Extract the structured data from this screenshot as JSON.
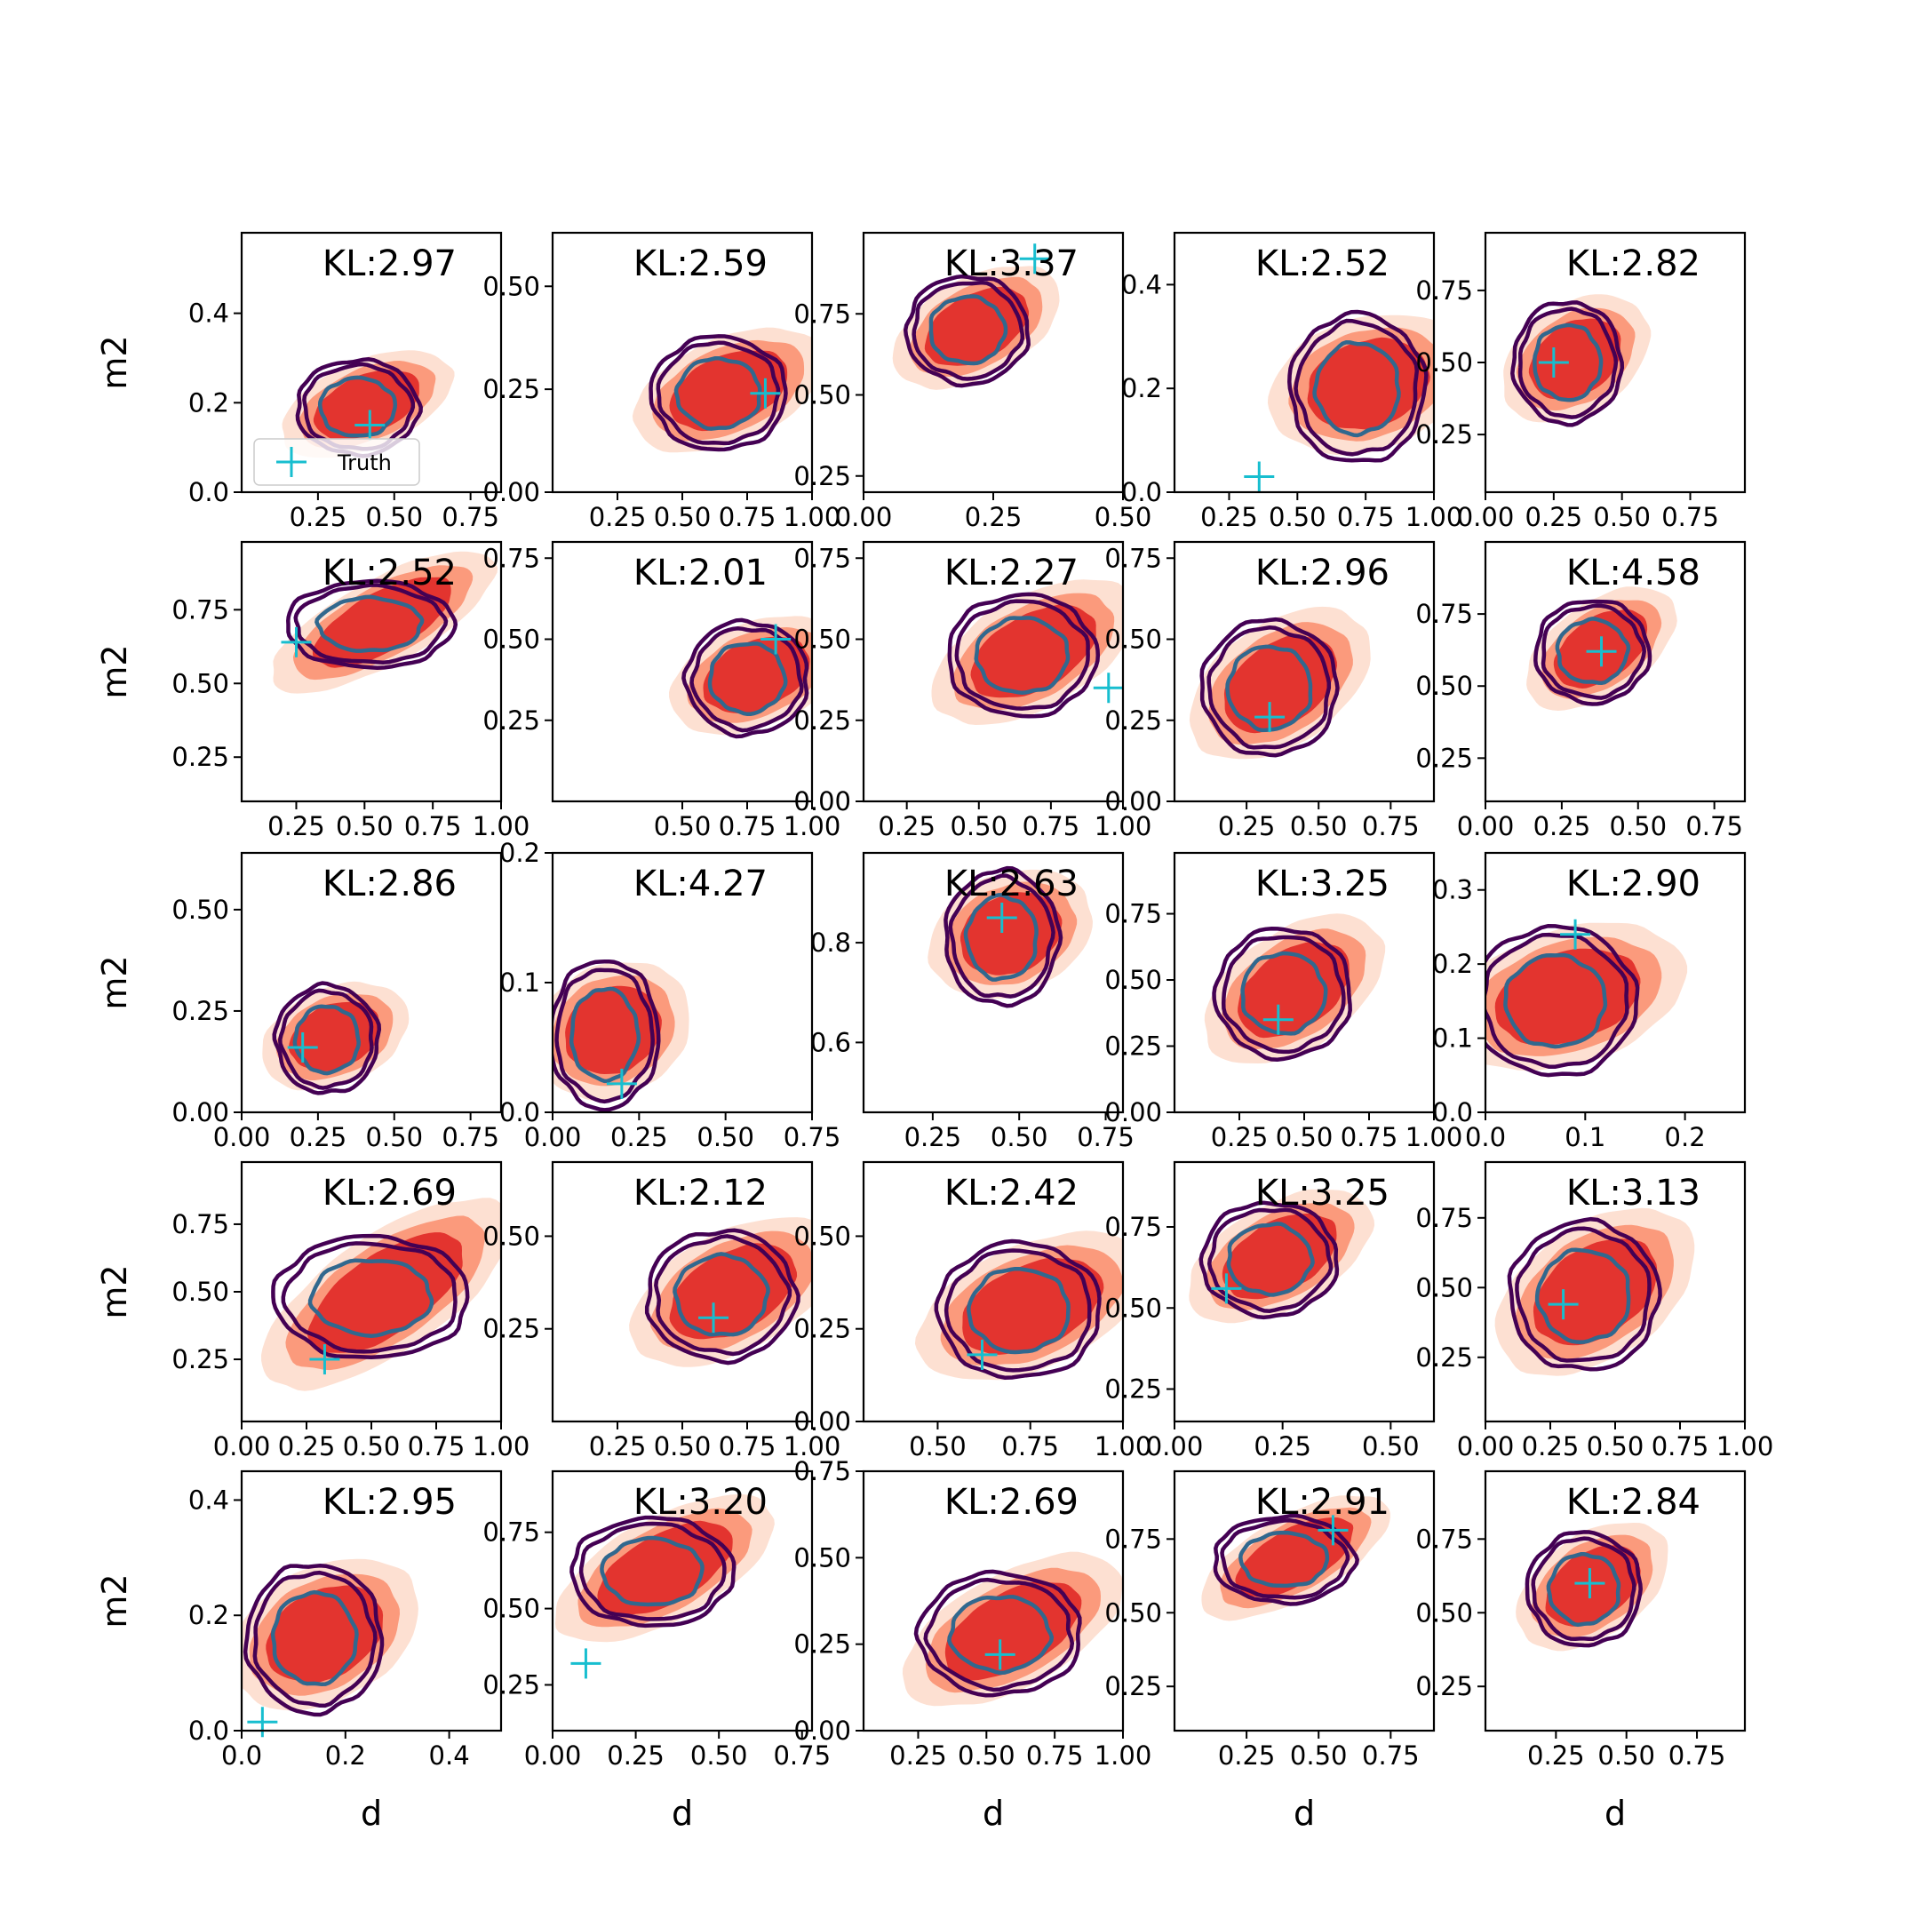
{
  "chart_data": {
    "type": "contour-grid",
    "rows": 5,
    "cols": 5,
    "xlabel": "d",
    "ylabel": "m2",
    "legend": {
      "label": "Truth",
      "location": "lower-left of first panel",
      "marker": "+"
    },
    "colors": {
      "truth": "#17becf",
      "outer_contour": "#440154",
      "inner_contour": "#31688e",
      "fill_light": "#fde0d2",
      "fill_mid": "#fb9a7c",
      "fill_dark": "#e3342f"
    },
    "panels": [
      {
        "kl": "KL:2.97",
        "xlim": [
          0,
          0.85
        ],
        "ylim": [
          0,
          0.58
        ],
        "xticks": [
          0.25,
          0.5,
          0.75
        ],
        "xticklabels": [
          "0.25",
          "0.50",
          "0.75"
        ],
        "yticks": [
          0,
          0.2,
          0.4
        ],
        "yticklabels": [
          "0.0",
          "0.2",
          "0.4"
        ],
        "truth": [
          0.42,
          0.15
        ],
        "center": [
          0.38,
          0.19
        ],
        "spread": [
          0.45,
          0.35
        ],
        "fill_tilt": 0.4,
        "legend": true
      },
      {
        "kl": "KL:2.59",
        "xlim": [
          0,
          1
        ],
        "ylim": [
          0,
          0.63
        ],
        "xticks": [
          0.25,
          0.5,
          0.75,
          1.0
        ],
        "xticklabels": [
          "0.25",
          "0.50",
          "0.75",
          "1.00"
        ],
        "yticks": [
          0,
          0.25,
          0.5
        ],
        "yticklabels": [
          "0.00",
          "0.25",
          "0.50"
        ],
        "truth": [
          0.82,
          0.24
        ],
        "center": [
          0.64,
          0.24
        ],
        "spread": [
          0.5,
          0.42
        ],
        "fill_tilt": 0.4
      },
      {
        "kl": "KL:3.37",
        "xlim": [
          0,
          0.5
        ],
        "ylim": [
          0.2,
          1.0
        ],
        "xticks": [
          0,
          0.25,
          0.5
        ],
        "xticklabels": [
          "0.00",
          "0.25",
          "0.50"
        ],
        "yticks": [
          0.25,
          0.5,
          0.75
        ],
        "yticklabels": [
          "0.25",
          "0.50",
          "0.75"
        ],
        "truth": [
          0.33,
          0.92
        ],
        "center": [
          0.2,
          0.7
        ],
        "spread": [
          0.45,
          0.4
        ],
        "fill_tilt": 0.5
      },
      {
        "kl": "KL:2.52",
        "xlim": [
          0.05,
          1
        ],
        "ylim": [
          0,
          0.5
        ],
        "xticks": [
          0.25,
          0.5,
          0.75,
          1.0
        ],
        "xticklabels": [
          "0.25",
          "0.50",
          "0.75",
          "1.00"
        ],
        "yticks": [
          0,
          0.2,
          0.4
        ],
        "yticklabels": [
          "0.0",
          "0.2",
          "0.4"
        ],
        "truth": [
          0.36,
          0.03
        ],
        "center": [
          0.72,
          0.2
        ],
        "spread": [
          0.5,
          0.55
        ],
        "fill_tilt": 0.3
      },
      {
        "kl": "KL:2.82",
        "xlim": [
          0,
          0.95
        ],
        "ylim": [
          0.05,
          0.95
        ],
        "xticks": [
          0,
          0.25,
          0.5,
          0.75
        ],
        "xticklabels": [
          "0.00",
          "0.25",
          "0.50",
          "0.75"
        ],
        "yticks": [
          0.25,
          0.5,
          0.75
        ],
        "yticklabels": [
          "0.25",
          "0.50",
          "0.75"
        ],
        "truth": [
          0.25,
          0.5
        ],
        "center": [
          0.3,
          0.5
        ],
        "spread": [
          0.4,
          0.45
        ],
        "fill_tilt": 0.6
      },
      {
        "kl": "KL:2.52",
        "xlim": [
          0.05,
          1
        ],
        "ylim": [
          0.1,
          0.98
        ],
        "xticks": [
          0.25,
          0.5,
          0.75,
          1.0
        ],
        "xticklabels": [
          "0.25",
          "0.50",
          "0.75",
          "1.00"
        ],
        "yticks": [
          0.25,
          0.5,
          0.75
        ],
        "yticklabels": [
          "0.25",
          "0.50",
          "0.75"
        ],
        "truth": [
          0.25,
          0.64
        ],
        "center": [
          0.52,
          0.7
        ],
        "spread": [
          0.62,
          0.32
        ],
        "fill_tilt": 0.5
      },
      {
        "kl": "KL:2.01",
        "xlim": [
          0,
          1
        ],
        "ylim": [
          0,
          0.8
        ],
        "xticks": [
          0.5,
          0.75,
          1.0
        ],
        "xticklabels": [
          "0.50",
          "0.75",
          "1.00"
        ],
        "yticks": [
          0.25,
          0.5,
          0.75
        ],
        "yticklabels": [
          "0.25",
          "0.50",
          "0.75"
        ],
        "truth": [
          0.86,
          0.5
        ],
        "center": [
          0.75,
          0.38
        ],
        "spread": [
          0.45,
          0.42
        ],
        "fill_tilt": 0.4
      },
      {
        "kl": "KL:2.27",
        "xlim": [
          0.1,
          1
        ],
        "ylim": [
          0,
          0.8
        ],
        "xticks": [
          0.25,
          0.5,
          0.75,
          1.0
        ],
        "xticklabels": [
          "0.25",
          "0.50",
          "0.75",
          "1.00"
        ],
        "yticks": [
          0,
          0.25,
          0.5,
          0.75
        ],
        "yticklabels": [
          "0.00",
          "0.25",
          "0.50",
          "0.75"
        ],
        "truth": [
          0.95,
          0.35
        ],
        "center": [
          0.65,
          0.45
        ],
        "spread": [
          0.55,
          0.45
        ],
        "fill_tilt": 0.5
      },
      {
        "kl": "KL:2.96",
        "xlim": [
          0,
          0.9
        ],
        "ylim": [
          0,
          0.8
        ],
        "xticks": [
          0.25,
          0.5,
          0.75
        ],
        "xticklabels": [
          "0.25",
          "0.50",
          "0.75"
        ],
        "yticks": [
          0,
          0.25,
          0.5,
          0.75
        ],
        "yticklabels": [
          "0.00",
          "0.25",
          "0.50",
          "0.75"
        ],
        "truth": [
          0.33,
          0.26
        ],
        "center": [
          0.33,
          0.35
        ],
        "spread": [
          0.5,
          0.5
        ],
        "fill_tilt": 0.6
      },
      {
        "kl": "KL:4.58",
        "xlim": [
          0,
          0.85
        ],
        "ylim": [
          0.1,
          1.0
        ],
        "xticks": [
          0,
          0.25,
          0.5,
          0.75
        ],
        "xticklabels": [
          "0.00",
          "0.25",
          "0.50",
          "0.75"
        ],
        "yticks": [
          0.25,
          0.5,
          0.75
        ],
        "yticklabels": [
          "0.25",
          "0.50",
          "0.75"
        ],
        "truth": [
          0.38,
          0.62
        ],
        "center": [
          0.35,
          0.62
        ],
        "spread": [
          0.42,
          0.38
        ],
        "fill_tilt": 0.6
      },
      {
        "kl": "KL:2.86",
        "xlim": [
          0,
          0.85
        ],
        "ylim": [
          0,
          0.64
        ],
        "xticks": [
          0,
          0.25,
          0.5,
          0.75
        ],
        "xticklabels": [
          "0.00",
          "0.25",
          "0.50",
          "0.75"
        ],
        "yticks": [
          0,
          0.25,
          0.5
        ],
        "yticklabels": [
          "0.00",
          "0.25",
          "0.50"
        ],
        "truth": [
          0.2,
          0.16
        ],
        "center": [
          0.28,
          0.18
        ],
        "spread": [
          0.38,
          0.4
        ],
        "fill_tilt": 0.4
      },
      {
        "kl": "KL:4.27",
        "xlim": [
          0,
          0.75
        ],
        "ylim": [
          0,
          0.2
        ],
        "xticks": [
          0,
          0.25,
          0.5,
          0.75
        ],
        "xticklabels": [
          "0.00",
          "0.25",
          "0.50",
          "0.75"
        ],
        "yticks": [
          0,
          0.1,
          0.2
        ],
        "yticklabels": [
          "0.0",
          "0.1",
          "0.2"
        ],
        "truth": [
          0.2,
          0.022
        ],
        "center": [
          0.15,
          0.06
        ],
        "spread": [
          0.4,
          0.55
        ],
        "fill_tilt": 0.5
      },
      {
        "kl": "KL:2.63",
        "xlim": [
          0.05,
          0.8
        ],
        "ylim": [
          0.46,
          0.98
        ],
        "xticks": [
          0.25,
          0.5,
          0.75
        ],
        "xticklabels": [
          "0.25",
          "0.50",
          "0.75"
        ],
        "yticks": [
          0.6,
          0.8
        ],
        "yticklabels": [
          "0.6",
          "0.8"
        ],
        "truth": [
          0.45,
          0.85
        ],
        "center": [
          0.45,
          0.81
        ],
        "spread": [
          0.42,
          0.5
        ],
        "fill_tilt": 0.4
      },
      {
        "kl": "KL:3.25",
        "xlim": [
          0,
          1
        ],
        "ylim": [
          0,
          0.98
        ],
        "xticks": [
          0.25,
          0.5,
          0.75,
          1.0
        ],
        "xticklabels": [
          "0.25",
          "0.50",
          "0.75",
          "1.00"
        ],
        "yticks": [
          0,
          0.25,
          0.5,
          0.75
        ],
        "yticklabels": [
          "0.00",
          "0.25",
          "0.50",
          "0.75"
        ],
        "truth": [
          0.4,
          0.35
        ],
        "center": [
          0.42,
          0.45
        ],
        "spread": [
          0.5,
          0.48
        ],
        "fill_tilt": 0.6
      },
      {
        "kl": "KL:2.90",
        "xlim": [
          0,
          0.26
        ],
        "ylim": [
          0,
          0.35
        ],
        "xticks": [
          0,
          0.1,
          0.2
        ],
        "xticklabels": [
          "0.0",
          "0.1",
          "0.2"
        ],
        "yticks": [
          0,
          0.1,
          0.2,
          0.3
        ],
        "yticklabels": [
          "0.0",
          "0.1",
          "0.2",
          "0.3"
        ],
        "truth": [
          0.09,
          0.24
        ],
        "center": [
          0.07,
          0.15
        ],
        "spread": [
          0.6,
          0.55
        ],
        "fill_tilt": 0.3
      },
      {
        "kl": "KL:2.69",
        "xlim": [
          0,
          1
        ],
        "ylim": [
          0.02,
          0.98
        ],
        "xticks": [
          0,
          0.25,
          0.5,
          0.75,
          1.0
        ],
        "xticklabels": [
          "0.00",
          "0.25",
          "0.50",
          "0.75",
          "1.00"
        ],
        "yticks": [
          0.25,
          0.5,
          0.75
        ],
        "yticklabels": [
          "0.25",
          "0.50",
          "0.75"
        ],
        "truth": [
          0.32,
          0.25
        ],
        "center": [
          0.5,
          0.48
        ],
        "spread": [
          0.72,
          0.45
        ],
        "fill_tilt": 0.6
      },
      {
        "kl": "KL:2.12",
        "xlim": [
          0,
          1
        ],
        "ylim": [
          0,
          0.7
        ],
        "xticks": [
          0.25,
          0.5,
          0.75,
          1.0
        ],
        "xticklabels": [
          "0.25",
          "0.50",
          "0.75",
          "1.00"
        ],
        "yticks": [
          0.25,
          0.5
        ],
        "yticklabels": [
          "0.25",
          "0.50"
        ],
        "truth": [
          0.62,
          0.28
        ],
        "center": [
          0.65,
          0.34
        ],
        "spread": [
          0.55,
          0.48
        ],
        "fill_tilt": 0.5
      },
      {
        "kl": "KL:2.42",
        "xlim": [
          0.3,
          1
        ],
        "ylim": [
          0,
          0.7
        ],
        "xticks": [
          0.5,
          0.75,
          1.0
        ],
        "xticklabels": [
          "0.50",
          "0.75",
          "1.00"
        ],
        "yticks": [
          0,
          0.25,
          0.5
        ],
        "yticklabels": [
          "0.00",
          "0.25",
          "0.50"
        ],
        "truth": [
          0.62,
          0.18
        ],
        "center": [
          0.72,
          0.3
        ],
        "spread": [
          0.6,
          0.5
        ],
        "fill_tilt": 0.4
      },
      {
        "kl": "KL:3.25",
        "xlim": [
          0,
          0.6
        ],
        "ylim": [
          0.15,
          0.95
        ],
        "xticks": [
          0,
          0.25,
          0.5
        ],
        "xticklabels": [
          "0.00",
          "0.25",
          "0.50"
        ],
        "yticks": [
          0.25,
          0.5,
          0.75
        ],
        "yticklabels": [
          "0.25",
          "0.50",
          "0.75"
        ],
        "truth": [
          0.12,
          0.56
        ],
        "center": [
          0.22,
          0.65
        ],
        "spread": [
          0.5,
          0.42
        ],
        "fill_tilt": 0.5
      },
      {
        "kl": "KL:3.13",
        "xlim": [
          0,
          1
        ],
        "ylim": [
          0.02,
          0.95
        ],
        "xticks": [
          0,
          0.25,
          0.5,
          0.75,
          1.0
        ],
        "xticklabels": [
          "0.00",
          "0.25",
          "0.50",
          "0.75",
          "1.00"
        ],
        "yticks": [
          0.25,
          0.5,
          0.75
        ],
        "yticklabels": [
          "0.25",
          "0.50",
          "0.75"
        ],
        "truth": [
          0.3,
          0.44
        ],
        "center": [
          0.38,
          0.47
        ],
        "spread": [
          0.55,
          0.55
        ],
        "fill_tilt": 0.6
      },
      {
        "kl": "KL:2.95",
        "xlim": [
          0,
          0.5
        ],
        "ylim": [
          0,
          0.45
        ],
        "xticks": [
          0,
          0.2,
          0.4
        ],
        "xticklabels": [
          "0.0",
          "0.2",
          "0.4"
        ],
        "yticks": [
          0,
          0.2,
          0.4
        ],
        "yticklabels": [
          "0.0",
          "0.2",
          "0.4"
        ],
        "truth": [
          0.04,
          0.015
        ],
        "center": [
          0.14,
          0.16
        ],
        "spread": [
          0.5,
          0.55
        ],
        "fill_tilt": 0.5
      },
      {
        "kl": "KL:3.20",
        "xlim": [
          0,
          0.78
        ],
        "ylim": [
          0.1,
          0.95
        ],
        "xticks": [
          0,
          0.25,
          0.5,
          0.75
        ],
        "xticklabels": [
          "0.00",
          "0.25",
          "0.50",
          "0.75"
        ],
        "yticks": [
          0.25,
          0.5,
          0.75
        ],
        "yticklabels": [
          "0.25",
          "0.50",
          "0.75"
        ],
        "truth": [
          0.1,
          0.32
        ],
        "center": [
          0.3,
          0.62
        ],
        "spread": [
          0.6,
          0.4
        ],
        "fill_tilt": 0.5
      },
      {
        "kl": "KL:2.69",
        "xlim": [
          0.05,
          1
        ],
        "ylim": [
          0,
          0.75
        ],
        "xticks": [
          0.25,
          0.5,
          0.75,
          1.0
        ],
        "xticklabels": [
          "0.25",
          "0.50",
          "0.75",
          "1.00"
        ],
        "yticks": [
          0,
          0.25,
          0.5,
          0.75
        ],
        "yticklabels": [
          "0.00",
          "0.25",
          "0.50",
          "0.75"
        ],
        "truth": [
          0.55,
          0.22
        ],
        "center": [
          0.55,
          0.28
        ],
        "spread": [
          0.6,
          0.45
        ],
        "fill_tilt": 0.5
      },
      {
        "kl": "KL:2.91",
        "xlim": [
          0,
          0.9
        ],
        "ylim": [
          0.1,
          0.98
        ],
        "xticks": [
          0.25,
          0.5,
          0.75
        ],
        "xticklabels": [
          "0.25",
          "0.50",
          "0.75"
        ],
        "yticks": [
          0.25,
          0.5,
          0.75
        ],
        "yticklabels": [
          "0.25",
          "0.50",
          "0.75"
        ],
        "truth": [
          0.55,
          0.78
        ],
        "center": [
          0.38,
          0.68
        ],
        "spread": [
          0.52,
          0.32
        ],
        "fill_tilt": 0.5
      },
      {
        "kl": "KL:2.84",
        "xlim": [
          0,
          0.92
        ],
        "ylim": [
          0.1,
          0.98
        ],
        "xticks": [
          0.25,
          0.5,
          0.75
        ],
        "xticklabels": [
          "0.25",
          "0.50",
          "0.75"
        ],
        "yticks": [
          0.25,
          0.5,
          0.75
        ],
        "yticklabels": [
          "0.25",
          "0.50",
          "0.75"
        ],
        "truth": [
          0.37,
          0.6
        ],
        "center": [
          0.35,
          0.58
        ],
        "spread": [
          0.42,
          0.42
        ],
        "fill_tilt": 0.6
      }
    ]
  }
}
